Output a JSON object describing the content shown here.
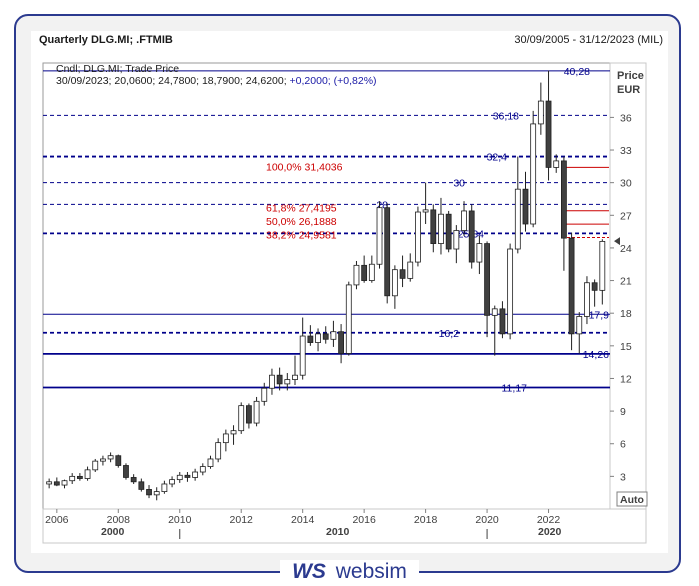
{
  "header": {
    "title": "Quarterly DLG.MI; .FTMIB",
    "date_range": "30/09/2005 - 31/12/2023 (MIL)"
  },
  "legend": {
    "line1": "Cndl; DLG.MI; Trade Price",
    "line2_prefix": "30/09/2023; 20,0600; 24,7800; 18,7900; 24,6200; ",
    "line2_change": "+0,2000; (+0,82%)"
  },
  "axis": {
    "price_label": "Price",
    "currency_label": "EUR",
    "auto_button": "Auto",
    "decade_2000": "2000",
    "decade_2010": "2010",
    "decade_2020": "2020"
  },
  "brand": {
    "mark": "WS",
    "name": "websim"
  },
  "colors": {
    "frame": "#2b3a8f",
    "levels": "#00008b",
    "fib": "#cc0000",
    "candle_up": "#ffffff",
    "candle_down": "#404040"
  },
  "chart_data": {
    "type": "candlestick",
    "ylim": [
      0,
      41
    ],
    "yticks": [
      3,
      6,
      9,
      12,
      15,
      18,
      21,
      24,
      27,
      30,
      33,
      36
    ],
    "xtick_labels": [
      "2006",
      "2008",
      "2010",
      "2012",
      "2014",
      "2016",
      "2018",
      "2020",
      "2022"
    ],
    "xtick_years": [
      2006,
      2008,
      2010,
      2012,
      2014,
      2016,
      2018,
      2020,
      2022
    ],
    "last_close": 24.62,
    "levels": [
      {
        "value": 40.28,
        "label": "40,28",
        "style": "solid"
      },
      {
        "value": 36.18,
        "label": "36,18",
        "style": "dashed"
      },
      {
        "value": 32.4,
        "label": "32,4",
        "style": "dashed-bold"
      },
      {
        "value": 30,
        "label": "30",
        "style": "dashed"
      },
      {
        "value": 28,
        "label": "28",
        "style": "dashed"
      },
      {
        "value": 25.34,
        "label": "25,34",
        "style": "dashed-bold"
      },
      {
        "value": 17.9,
        "label": "17,9",
        "style": "solid"
      },
      {
        "value": 16.2,
        "label": "16,2",
        "style": "dashed-bold"
      },
      {
        "value": 14.26,
        "label": "14,26",
        "style": "solid-bold"
      },
      {
        "value": 11.17,
        "label": "11,17",
        "style": "solid-bold"
      }
    ],
    "fibonacci": [
      {
        "label": "100,0% 31,4036",
        "value": 31.4036
      },
      {
        "label": "61,8%  27,4195",
        "value": 27.4195
      },
      {
        "label": "50,0%  26,1888",
        "value": 26.1888
      },
      {
        "label": "38,2%  24,9581",
        "value": 24.9581
      }
    ],
    "candles": [
      {
        "t": 2005.75,
        "o": 2.3,
        "h": 2.8,
        "l": 1.9,
        "c": 2.5
      },
      {
        "t": 2006.0,
        "o": 2.5,
        "h": 2.9,
        "l": 2.1,
        "c": 2.2
      },
      {
        "t": 2006.25,
        "o": 2.2,
        "h": 2.7,
        "l": 1.9,
        "c": 2.6
      },
      {
        "t": 2006.5,
        "o": 2.6,
        "h": 3.3,
        "l": 2.3,
        "c": 3.0
      },
      {
        "t": 2006.75,
        "o": 3.0,
        "h": 3.3,
        "l": 2.6,
        "c": 2.8
      },
      {
        "t": 2007.0,
        "o": 2.8,
        "h": 3.9,
        "l": 2.6,
        "c": 3.6
      },
      {
        "t": 2007.25,
        "o": 3.6,
        "h": 4.6,
        "l": 3.4,
        "c": 4.4
      },
      {
        "t": 2007.5,
        "o": 4.4,
        "h": 4.9,
        "l": 4.0,
        "c": 4.6
      },
      {
        "t": 2007.75,
        "o": 4.6,
        "h": 5.2,
        "l": 4.3,
        "c": 4.9
      },
      {
        "t": 2008.0,
        "o": 4.9,
        "h": 5.0,
        "l": 3.8,
        "c": 4.0
      },
      {
        "t": 2008.25,
        "o": 4.0,
        "h": 4.2,
        "l": 2.7,
        "c": 2.9
      },
      {
        "t": 2008.5,
        "o": 2.9,
        "h": 3.2,
        "l": 2.3,
        "c": 2.5
      },
      {
        "t": 2008.75,
        "o": 2.5,
        "h": 2.8,
        "l": 1.6,
        "c": 1.8
      },
      {
        "t": 2009.0,
        "o": 1.8,
        "h": 2.2,
        "l": 1.0,
        "c": 1.3
      },
      {
        "t": 2009.25,
        "o": 1.3,
        "h": 2.0,
        "l": 0.8,
        "c": 1.6
      },
      {
        "t": 2009.5,
        "o": 1.6,
        "h": 2.6,
        "l": 1.4,
        "c": 2.3
      },
      {
        "t": 2009.75,
        "o": 2.3,
        "h": 3.0,
        "l": 2.0,
        "c": 2.7
      },
      {
        "t": 2010.0,
        "o": 2.7,
        "h": 3.4,
        "l": 2.4,
        "c": 3.1
      },
      {
        "t": 2010.25,
        "o": 3.1,
        "h": 3.4,
        "l": 2.5,
        "c": 2.9
      },
      {
        "t": 2010.5,
        "o": 2.9,
        "h": 3.7,
        "l": 2.6,
        "c": 3.4
      },
      {
        "t": 2010.75,
        "o": 3.4,
        "h": 4.2,
        "l": 3.1,
        "c": 3.9
      },
      {
        "t": 2011.0,
        "o": 3.9,
        "h": 4.9,
        "l": 3.7,
        "c": 4.6
      },
      {
        "t": 2011.25,
        "o": 4.6,
        "h": 6.5,
        "l": 4.3,
        "c": 6.1
      },
      {
        "t": 2011.5,
        "o": 6.1,
        "h": 7.3,
        "l": 5.3,
        "c": 6.9
      },
      {
        "t": 2011.75,
        "o": 6.9,
        "h": 7.7,
        "l": 5.9,
        "c": 7.2
      },
      {
        "t": 2012.0,
        "o": 7.2,
        "h": 9.8,
        "l": 6.9,
        "c": 9.5
      },
      {
        "t": 2012.25,
        "o": 9.5,
        "h": 9.7,
        "l": 7.4,
        "c": 7.9
      },
      {
        "t": 2012.5,
        "o": 7.9,
        "h": 10.3,
        "l": 7.6,
        "c": 9.9
      },
      {
        "t": 2012.75,
        "o": 9.9,
        "h": 11.6,
        "l": 9.5,
        "c": 11.1
      },
      {
        "t": 2013.0,
        "o": 11.1,
        "h": 12.9,
        "l": 10.5,
        "c": 12.3
      },
      {
        "t": 2013.25,
        "o": 12.3,
        "h": 13.0,
        "l": 10.9,
        "c": 11.5
      },
      {
        "t": 2013.5,
        "o": 11.5,
        "h": 12.5,
        "l": 10.9,
        "c": 11.9
      },
      {
        "t": 2013.75,
        "o": 11.9,
        "h": 14.1,
        "l": 11.4,
        "c": 12.3
      },
      {
        "t": 2014.0,
        "o": 12.3,
        "h": 17.6,
        "l": 11.9,
        "c": 15.9
      },
      {
        "t": 2014.25,
        "o": 15.9,
        "h": 16.9,
        "l": 15.0,
        "c": 15.3
      },
      {
        "t": 2014.5,
        "o": 15.3,
        "h": 16.6,
        "l": 14.5,
        "c": 16.1
      },
      {
        "t": 2014.75,
        "o": 16.1,
        "h": 16.8,
        "l": 15.2,
        "c": 15.6
      },
      {
        "t": 2015.0,
        "o": 15.6,
        "h": 17.3,
        "l": 14.9,
        "c": 16.3
      },
      {
        "t": 2015.25,
        "o": 16.3,
        "h": 17.0,
        "l": 13.4,
        "c": 14.3
      },
      {
        "t": 2015.5,
        "o": 14.3,
        "h": 20.9,
        "l": 14.1,
        "c": 20.6
      },
      {
        "t": 2015.75,
        "o": 20.6,
        "h": 22.8,
        "l": 20.2,
        "c": 22.4
      },
      {
        "t": 2016.0,
        "o": 22.4,
        "h": 23.3,
        "l": 20.8,
        "c": 21.0
      },
      {
        "t": 2016.25,
        "o": 21.0,
        "h": 23.3,
        "l": 20.8,
        "c": 22.5
      },
      {
        "t": 2016.5,
        "o": 22.5,
        "h": 28.3,
        "l": 22.1,
        "c": 27.7
      },
      {
        "t": 2016.75,
        "o": 27.7,
        "h": 28.1,
        "l": 18.9,
        "c": 19.6
      },
      {
        "t": 2017.0,
        "o": 19.6,
        "h": 22.4,
        "l": 18.4,
        "c": 22.0
      },
      {
        "t": 2017.25,
        "o": 22.0,
        "h": 23.3,
        "l": 20.4,
        "c": 21.2
      },
      {
        "t": 2017.5,
        "o": 21.2,
        "h": 23.5,
        "l": 20.9,
        "c": 22.7
      },
      {
        "t": 2017.75,
        "o": 22.7,
        "h": 27.8,
        "l": 22.3,
        "c": 27.3
      },
      {
        "t": 2018.0,
        "o": 27.3,
        "h": 30.0,
        "l": 26.2,
        "c": 27.5
      },
      {
        "t": 2018.25,
        "o": 27.5,
        "h": 28.0,
        "l": 23.6,
        "c": 24.4
      },
      {
        "t": 2018.5,
        "o": 24.4,
        "h": 28.6,
        "l": 23.4,
        "c": 27.1
      },
      {
        "t": 2018.75,
        "o": 27.1,
        "h": 27.4,
        "l": 23.6,
        "c": 23.9
      },
      {
        "t": 2019.0,
        "o": 23.9,
        "h": 26.1,
        "l": 22.6,
        "c": 25.6
      },
      {
        "t": 2019.25,
        "o": 25.6,
        "h": 28.3,
        "l": 25.1,
        "c": 27.4
      },
      {
        "t": 2019.5,
        "o": 27.4,
        "h": 28.0,
        "l": 22.1,
        "c": 22.7
      },
      {
        "t": 2019.75,
        "o": 22.7,
        "h": 25.1,
        "l": 21.6,
        "c": 24.4
      },
      {
        "t": 2020.0,
        "o": 24.4,
        "h": 24.6,
        "l": 15.8,
        "c": 17.8
      },
      {
        "t": 2020.25,
        "o": 17.8,
        "h": 18.7,
        "l": 14.1,
        "c": 18.4
      },
      {
        "t": 2020.5,
        "o": 18.4,
        "h": 19.1,
        "l": 15.7,
        "c": 16.1
      },
      {
        "t": 2020.75,
        "o": 16.1,
        "h": 24.4,
        "l": 15.6,
        "c": 23.9
      },
      {
        "t": 2021.0,
        "o": 23.9,
        "h": 32.4,
        "l": 23.5,
        "c": 29.4
      },
      {
        "t": 2021.25,
        "o": 29.4,
        "h": 31.0,
        "l": 25.5,
        "c": 26.2
      },
      {
        "t": 2021.5,
        "o": 26.2,
        "h": 36.6,
        "l": 25.9,
        "c": 35.4
      },
      {
        "t": 2021.75,
        "o": 35.4,
        "h": 39.2,
        "l": 34.4,
        "c": 37.5
      },
      {
        "t": 2022.0,
        "o": 37.5,
        "h": 40.3,
        "l": 30.2,
        "c": 31.4
      },
      {
        "t": 2022.25,
        "o": 31.4,
        "h": 32.6,
        "l": 30.9,
        "c": 32.0
      },
      {
        "t": 2022.5,
        "o": 32.0,
        "h": 32.4,
        "l": 21.9,
        "c": 24.9
      },
      {
        "t": 2022.75,
        "o": 24.9,
        "h": 25.4,
        "l": 14.6,
        "c": 16.1
      },
      {
        "t": 2023.0,
        "o": 16.1,
        "h": 18.1,
        "l": 14.3,
        "c": 17.7
      },
      {
        "t": 2023.25,
        "o": 17.7,
        "h": 21.4,
        "l": 17.0,
        "c": 20.8
      },
      {
        "t": 2023.5,
        "o": 20.8,
        "h": 21.1,
        "l": 18.6,
        "c": 20.1
      },
      {
        "t": 2023.75,
        "o": 20.1,
        "h": 24.8,
        "l": 18.8,
        "c": 24.6
      }
    ]
  }
}
